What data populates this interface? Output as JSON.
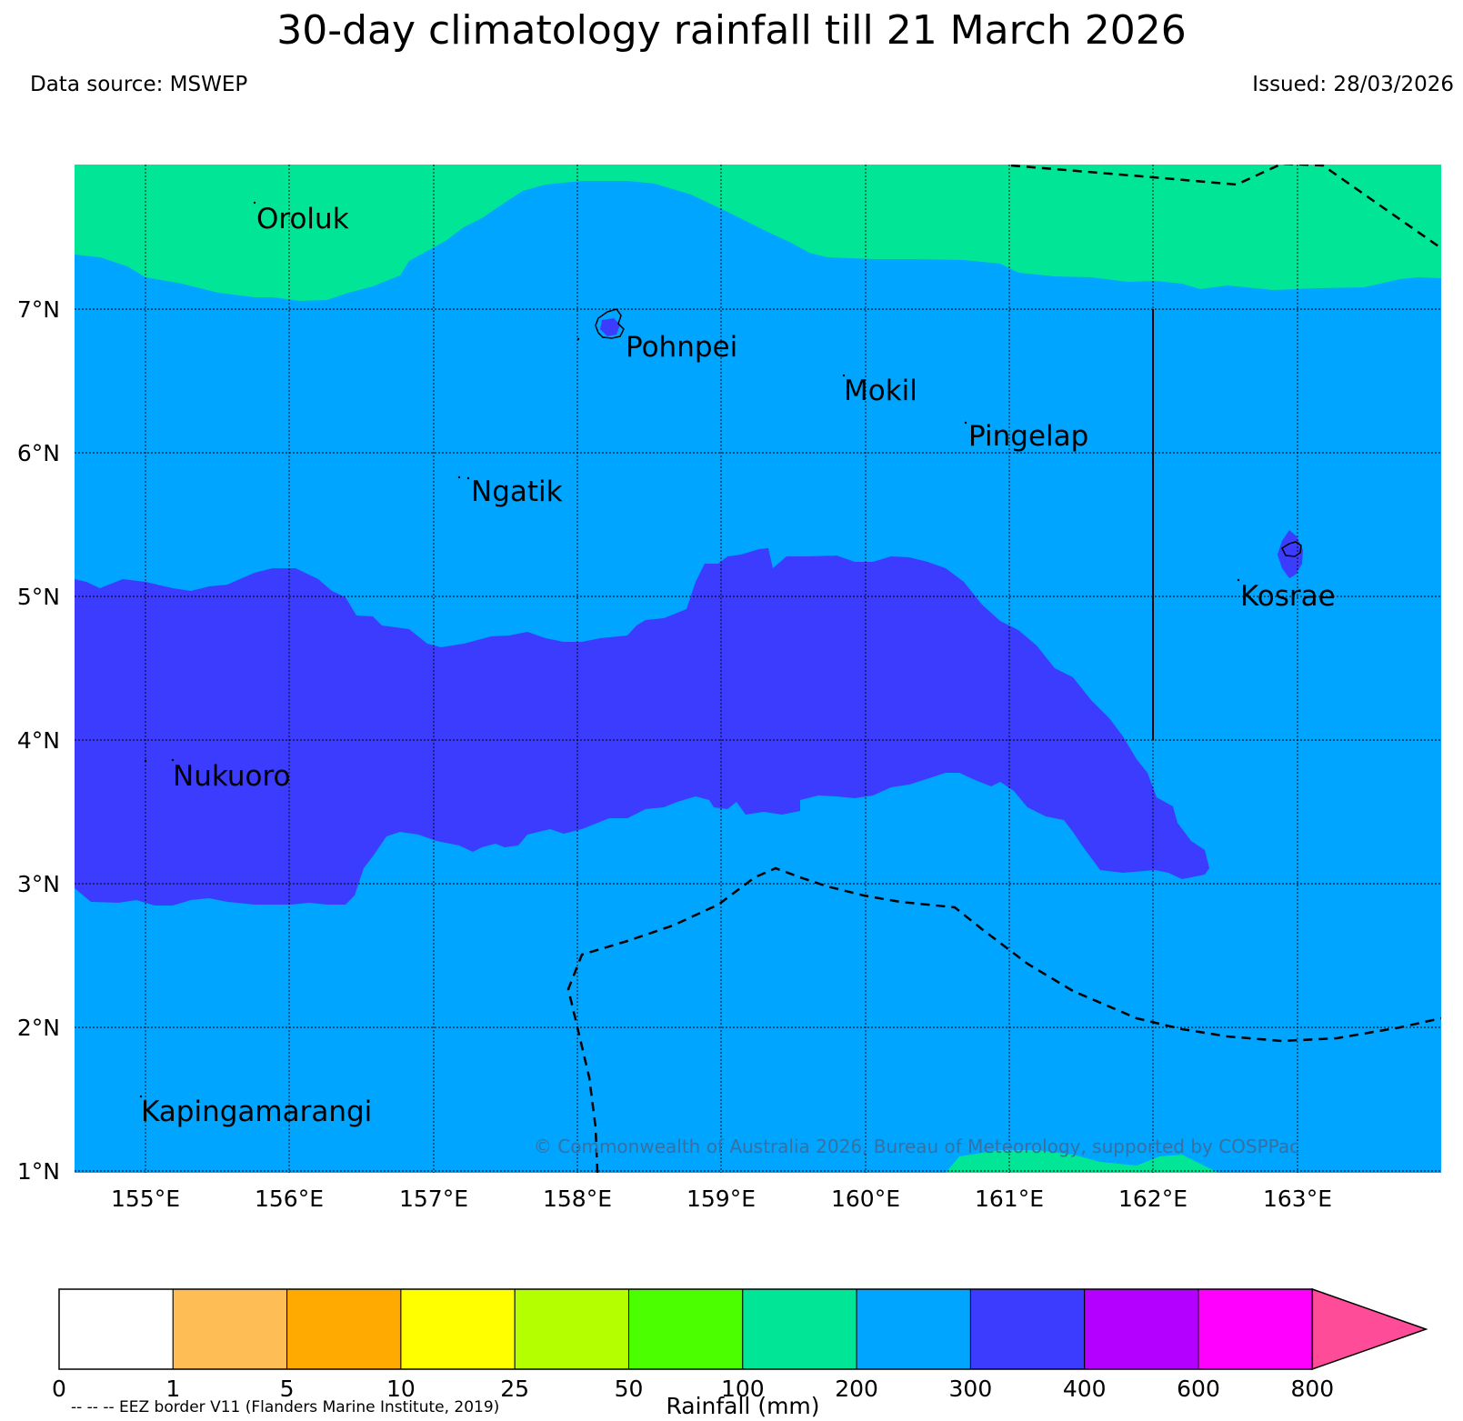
{
  "title": "30-day climatology rainfall till 21 March 2026",
  "data_source": "Data source: MSWEP",
  "issued": "Issued: 28/03/2026",
  "copyright": "© Commonwealth of Australia 2026, Bureau of Meteorology, supported by COSPPac",
  "eez_note": "-- -- -- EEZ border V11 (Flanders Marine Institute, 2019)",
  "colorbar": {
    "label": "Rainfall (mm)",
    "ticks": [
      "0",
      "1",
      "5",
      "10",
      "25",
      "50",
      "100",
      "200",
      "300",
      "400",
      "600",
      "800"
    ],
    "colors": [
      "#ffffff",
      "#ffbe55",
      "#ffaa00",
      "#ffff00",
      "#b4ff00",
      "#4bff00",
      "#00e696",
      "#00a5ff",
      "#3c3cff",
      "#b400ff",
      "#ff00ff"
    ],
    "extend_color": "#ff4c98"
  },
  "map": {
    "lon_range": [
      154.5,
      164.0
    ],
    "lat_range": [
      1.0,
      8.0
    ],
    "lon_ticks": [
      155,
      156,
      157,
      158,
      159,
      160,
      161,
      162,
      163
    ],
    "lon_labels": [
      "155°E",
      "156°E",
      "157°E",
      "158°E",
      "159°E",
      "160°E",
      "161°E",
      "162°E",
      "163°E"
    ],
    "lat_ticks": [
      1,
      2,
      3,
      4,
      5,
      6,
      7
    ],
    "lat_labels": [
      "1°N",
      "2°N",
      "3°N",
      "4°N",
      "5°N",
      "6°N",
      "7°N"
    ],
    "places": [
      {
        "name": "Oroluk",
        "lon": 155.8,
        "lat": 7.5
      },
      {
        "name": "Pohnpei",
        "lon": 158.35,
        "lat": 6.6
      },
      {
        "name": "Mokil",
        "lon": 159.85,
        "lat": 6.3
      },
      {
        "name": "Pingelap",
        "lon": 160.72,
        "lat": 5.98
      },
      {
        "name": "Ngatik",
        "lon": 157.27,
        "lat": 5.6
      },
      {
        "name": "Kosrae",
        "lon": 162.6,
        "lat": 4.87
      },
      {
        "name": "Nukuoro",
        "lon": 155.2,
        "lat": 3.6
      },
      {
        "name": "Kapingamarangi",
        "lon": 154.97,
        "lat": 1.33
      }
    ]
  }
}
